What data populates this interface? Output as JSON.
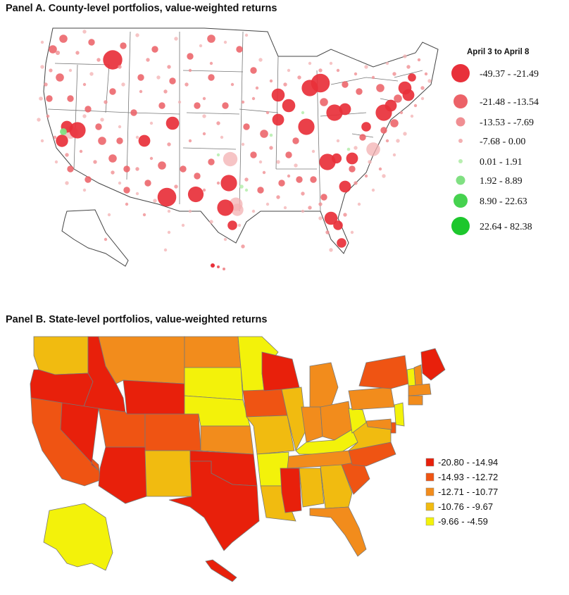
{
  "panel_a": {
    "title": "Panel A.  County-level portfolios, value-weighted returns",
    "legend": {
      "title": "April 3 to April 8",
      "classes": [
        {
          "label": "-49.37 - -21.49",
          "color": "#e8303a",
          "size": "largest"
        },
        {
          "label": "-21.48 - -13.54",
          "color": "#ec6268",
          "size": "large"
        },
        {
          "label": "-13.53 - -7.69",
          "color": "#f08e92",
          "size": "medium"
        },
        {
          "label": "-7.68 - 0.00",
          "color": "#f3b0b2",
          "size": "small"
        },
        {
          "label": "0.01 - 1.91",
          "color": "#b8eeb0",
          "size": "small"
        },
        {
          "label": "1.92 - 8.89",
          "color": "#80e082",
          "size": "medium"
        },
        {
          "label": "8.90 - 22.63",
          "color": "#46d24f",
          "size": "large"
        },
        {
          "label": "22.64 - 82.38",
          "color": "#1dc72d",
          "size": "largest"
        }
      ]
    }
  },
  "panel_b": {
    "title": "Panel B. State-level portfolios, value-weighted returns",
    "legend": {
      "classes": [
        {
          "label": "-20.80 - -14.94",
          "color": "#e8200b"
        },
        {
          "label": "-14.93 - -12.72",
          "color": "#ef5413"
        },
        {
          "label": "-12.71 - -10.77",
          "color": "#f28c1c"
        },
        {
          "label": "-10.76 - -9.67",
          "color": "#f1bb10"
        },
        {
          "label": "-9.66 - -4.59",
          "color": "#f3f20a"
        }
      ]
    },
    "state_classes": {
      "WA": 3,
      "OR": 0,
      "ID": 0,
      "MT": 2,
      "WY": 0,
      "ND": 2,
      "SD": 4,
      "NE": 4,
      "MN": 4,
      "CA": 1,
      "NV": 0,
      "UT": 1,
      "CO": 1,
      "KS": 2,
      "AZ": 0,
      "NM": 3,
      "TX": 0,
      "OK": 0,
      "IA": 1,
      "MO": 3,
      "AR": 4,
      "LA": 3,
      "WI": 0,
      "IL": 3,
      "MI": 2,
      "IN": 2,
      "OH": 2,
      "KY": 4,
      "TN": 2,
      "MS": 0,
      "AL": 3,
      "GA": 3,
      "FL": 2,
      "SC": 1,
      "NC": 1,
      "VA": 3,
      "WV": 4,
      "PA": 2,
      "NY": 1,
      "ME": 0,
      "VT": 4,
      "NH": 2,
      "MA": 2,
      "CT": 2,
      "NJ": 4,
      "DE": 1,
      "MD": 2,
      "AK": 4,
      "HI": 0
    }
  }
}
